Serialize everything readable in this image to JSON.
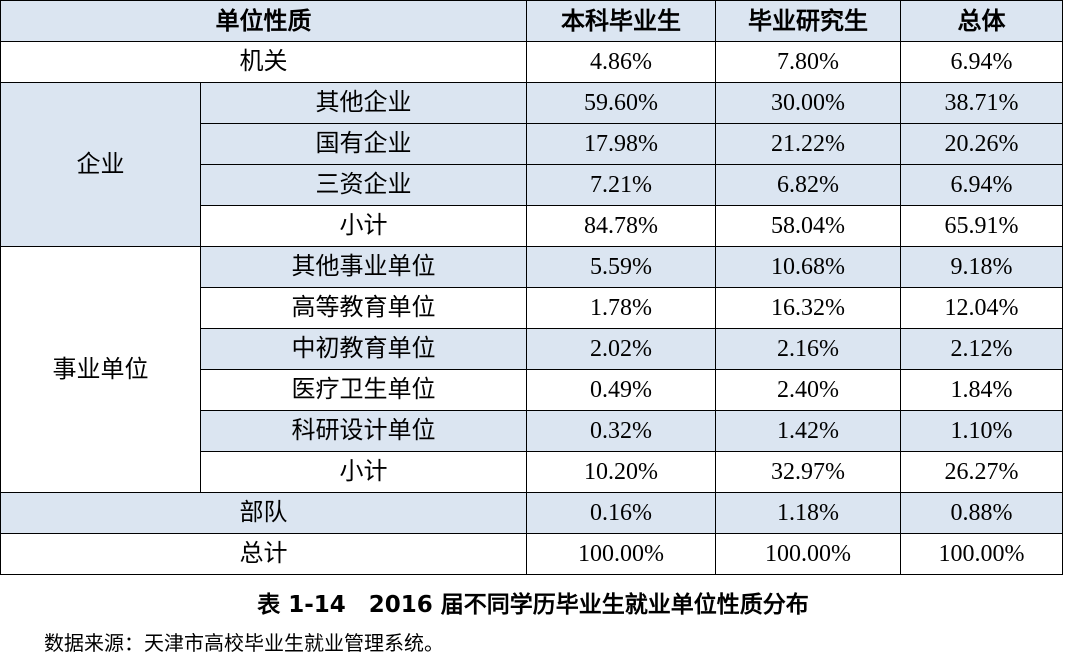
{
  "table": {
    "header": [
      "单位性质",
      "本科毕业生",
      "毕业研究生",
      "总体"
    ],
    "header_shaded": true,
    "sections": [
      {
        "label": "机关",
        "values": [
          "4.86%",
          "7.80%",
          "6.94%"
        ]
      },
      {
        "label": "企业",
        "shaded": true,
        "items": [
          {
            "label": "其他企业",
            "shaded": true,
            "values": [
              "59.60%",
              "30.00%",
              "38.71%"
            ]
          },
          {
            "label": "国有企业",
            "shaded": true,
            "values": [
              "17.98%",
              "21.22%",
              "20.26%"
            ]
          },
          {
            "label": "三资企业",
            "shaded": true,
            "values": [
              "7.21%",
              "6.82%",
              "6.94%"
            ]
          },
          {
            "label": "小计",
            "values": [
              "84.78%",
              "58.04%",
              "65.91%"
            ]
          }
        ]
      },
      {
        "label": "事业单位",
        "items": [
          {
            "label": "其他事业单位",
            "shaded": true,
            "values": [
              "5.59%",
              "10.68%",
              "9.18%"
            ]
          },
          {
            "label": "高等教育单位",
            "values": [
              "1.78%",
              "16.32%",
              "12.04%"
            ]
          },
          {
            "label": "中初教育单位",
            "shaded": true,
            "values": [
              "2.02%",
              "2.16%",
              "2.12%"
            ]
          },
          {
            "label": "医疗卫生单位",
            "values": [
              "0.49%",
              "2.40%",
              "1.84%"
            ]
          },
          {
            "label": "科研设计单位",
            "shaded": true,
            "values": [
              "0.32%",
              "1.42%",
              "1.10%"
            ]
          },
          {
            "label": "小计",
            "values": [
              "10.20%",
              "32.97%",
              "26.27%"
            ]
          }
        ]
      },
      {
        "label": "部队",
        "shaded": true,
        "values": [
          "0.16%",
          "1.18%",
          "0.88%"
        ]
      },
      {
        "label": "总计",
        "values": [
          "100.00%",
          "100.00%",
          "100.00%"
        ]
      }
    ]
  },
  "caption": "表 1-14　2016 届不同学历毕业生就业单位性质分布",
  "source": "数据来源：天津市高校毕业生就业管理系统。"
}
